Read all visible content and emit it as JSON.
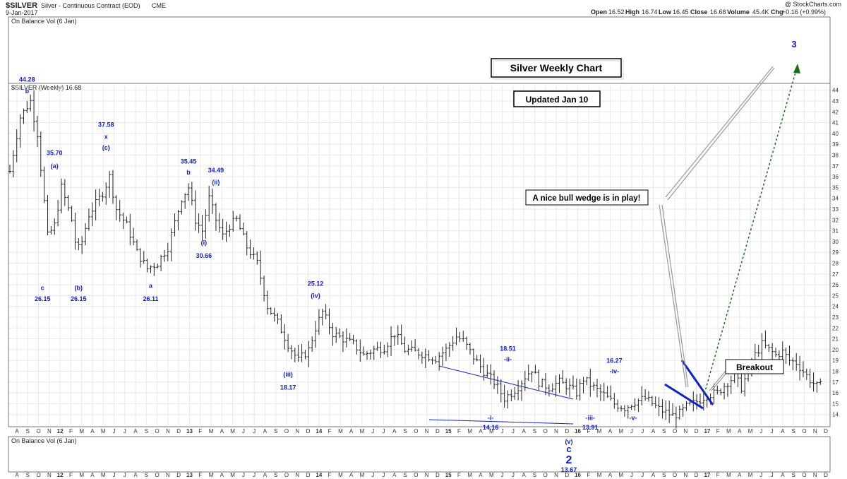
{
  "header": {
    "symbol": "$SILVER",
    "description": "Silver - Continuous Contract (EOD)",
    "exchange": "CME",
    "date": "9-Jan-2017",
    "watermark": "@ StockCharts.com",
    "quote": {
      "open_label": "Open",
      "open": "16.52",
      "high_label": "High",
      "high": "16.74",
      "low_label": "Low",
      "low": "16.45",
      "close_label": "Close",
      "close": "16.68",
      "volume_label": "Volume",
      "volume": "45.4K",
      "chg_label": "Chg",
      "chg": "+0.16 (+0.99%)"
    }
  },
  "panels": {
    "obv_top_label": "On Balance Vol (6 Jan)",
    "price_label": "$SILVER (Weekly) 16.68",
    "obv_bottom_label": "On Balance Vol (6 Jan)"
  },
  "boxes": {
    "title": "Silver Weekly Chart",
    "updated": "Updated Jan 10",
    "wedge": "A nice bull wedge is in play!",
    "breakout": "Breakout"
  },
  "colors": {
    "price_bars": "#222222",
    "annotation": "#1020d0",
    "trendline": "#1020d0",
    "projection": "#1a6b1a"
  },
  "chart_data": {
    "type": "ohlc",
    "title": "Silver Weekly Chart",
    "ylim": [
      13,
      44.5
    ],
    "y_ticks": [
      14,
      15,
      16,
      17,
      18,
      19,
      20,
      21,
      22,
      23,
      24,
      25,
      26,
      27,
      28,
      29,
      30,
      31,
      32,
      33,
      34,
      35,
      36,
      37,
      38,
      39,
      40,
      41,
      42,
      43,
      44
    ],
    "x_ticks": [
      "A",
      "S",
      "O",
      "N",
      "12",
      "F",
      "M",
      "A",
      "M",
      "J",
      "J",
      "A",
      "S",
      "O",
      "N",
      "D",
      "13",
      "F",
      "M",
      "A",
      "M",
      "J",
      "J",
      "A",
      "S",
      "O",
      "N",
      "D",
      "14",
      "F",
      "M",
      "A",
      "M",
      "J",
      "J",
      "A",
      "S",
      "O",
      "N",
      "D",
      "15",
      "F",
      "M",
      "A",
      "M",
      "J",
      "J",
      "A",
      "S",
      "O",
      "N",
      "D",
      "16",
      "F",
      "M",
      "A",
      "M",
      "J",
      "J",
      "A",
      "S",
      "O",
      "N",
      "D",
      "17",
      "F",
      "M",
      "A",
      "M",
      "J",
      "J",
      "A",
      "S",
      "O",
      "N",
      "D"
    ],
    "bold_ticks": [
      "12",
      "13",
      "14",
      "15",
      "16",
      "17"
    ],
    "path": [
      {
        "t": 0,
        "v": 36.5
      },
      {
        "t": 3,
        "v": 41.5
      },
      {
        "t": 6,
        "v": 43.0
      },
      {
        "t": 8,
        "v": 40.0
      },
      {
        "t": 11,
        "v": 30.5
      },
      {
        "t": 13,
        "v": 31.5
      },
      {
        "t": 15,
        "v": 35.0
      },
      {
        "t": 18,
        "v": 32.0
      },
      {
        "t": 19.5,
        "v": 29.0
      },
      {
        "t": 21,
        "v": 30.0
      },
      {
        "t": 23,
        "v": 32.5
      },
      {
        "t": 27,
        "v": 34.5
      },
      {
        "t": 29,
        "v": 36.0
      },
      {
        "t": 31,
        "v": 33.0
      },
      {
        "t": 34,
        "v": 31.5
      },
      {
        "t": 37,
        "v": 29.0
      },
      {
        "t": 40,
        "v": 27.5
      },
      {
        "t": 43,
        "v": 28.0
      },
      {
        "t": 46,
        "v": 29.5
      },
      {
        "t": 50,
        "v": 34.0
      },
      {
        "t": 52,
        "v": 35.0
      },
      {
        "t": 54,
        "v": 32.0
      },
      {
        "t": 56,
        "v": 31.0
      },
      {
        "t": 58,
        "v": 34.0
      },
      {
        "t": 60,
        "v": 32.0
      },
      {
        "t": 62,
        "v": 30.5
      },
      {
        "t": 64,
        "v": 31.5
      },
      {
        "t": 66,
        "v": 32.0
      },
      {
        "t": 69,
        "v": 29.5
      },
      {
        "t": 72,
        "v": 28.0
      },
      {
        "t": 75,
        "v": 24.0
      },
      {
        "t": 78,
        "v": 22.5
      },
      {
        "t": 81,
        "v": 20.5
      },
      {
        "t": 84,
        "v": 19.0
      },
      {
        "t": 87,
        "v": 20.0
      },
      {
        "t": 89,
        "v": 22.0
      },
      {
        "t": 91,
        "v": 23.5
      },
      {
        "t": 94,
        "v": 21.5
      },
      {
        "t": 97,
        "v": 21.0
      },
      {
        "t": 100,
        "v": 20.5
      },
      {
        "t": 103,
        "v": 19.5
      },
      {
        "t": 106,
        "v": 20.0
      },
      {
        "t": 109,
        "v": 20.2
      },
      {
        "t": 112,
        "v": 21.5
      },
      {
        "t": 115,
        "v": 20.0
      },
      {
        "t": 118,
        "v": 19.8
      },
      {
        "t": 121,
        "v": 19.5
      },
      {
        "t": 124,
        "v": 19.2
      },
      {
        "t": 127,
        "v": 20.0
      },
      {
        "t": 130,
        "v": 21.2
      },
      {
        "t": 132,
        "v": 20.8
      },
      {
        "t": 135,
        "v": 19.3
      },
      {
        "t": 138,
        "v": 18.0
      },
      {
        "t": 141,
        "v": 17.0
      },
      {
        "t": 144,
        "v": 15.5
      },
      {
        "t": 146,
        "v": 16.0
      },
      {
        "t": 148,
        "v": 16.6
      },
      {
        "t": 150,
        "v": 17.5
      },
      {
        "t": 152,
        "v": 18.2
      },
      {
        "t": 154,
        "v": 17.0
      },
      {
        "t": 157,
        "v": 16.5
      },
      {
        "t": 160,
        "v": 17.0
      },
      {
        "t": 163,
        "v": 16.5
      },
      {
        "t": 165,
        "v": 16.0
      },
      {
        "t": 167,
        "v": 17.3
      },
      {
        "t": 170,
        "v": 16.5
      },
      {
        "t": 173,
        "v": 15.8
      },
      {
        "t": 176,
        "v": 15.0
      },
      {
        "t": 179,
        "v": 14.6
      },
      {
        "t": 182,
        "v": 15.2
      },
      {
        "t": 185,
        "v": 15.5
      },
      {
        "t": 187,
        "v": 15.0
      },
      {
        "t": 189,
        "v": 14.5
      },
      {
        "t": 191,
        "v": 14.2
      },
      {
        "t": 193,
        "v": 13.9
      },
      {
        "t": 195,
        "v": 14.1
      },
      {
        "t": 197,
        "v": 14.7
      },
      {
        "t": 200,
        "v": 15.2
      },
      {
        "t": 203,
        "v": 15.8
      },
      {
        "t": 206,
        "v": 16.0
      },
      {
        "t": 209,
        "v": 17.0
      },
      {
        "t": 211,
        "v": 17.5
      },
      {
        "t": 213,
        "v": 16.5
      },
      {
        "t": 215,
        "v": 18.0
      },
      {
        "t": 217,
        "v": 19.5
      },
      {
        "t": 219,
        "v": 20.5
      },
      {
        "t": 221,
        "v": 20.0
      },
      {
        "t": 223,
        "v": 19.5
      },
      {
        "t": 225,
        "v": 19.8
      },
      {
        "t": 227,
        "v": 19.0
      },
      {
        "t": 229,
        "v": 18.8
      },
      {
        "t": 231,
        "v": 18.0
      },
      {
        "t": 233,
        "v": 17.2
      },
      {
        "t": 235,
        "v": 16.6
      },
      {
        "t": 236,
        "v": 16.7
      }
    ],
    "annotations": [
      {
        "text": "44.28",
        "t": 5,
        "v": 44.8
      },
      {
        "text": "b",
        "t": 5,
        "v": 43.7
      },
      {
        "text": "c",
        "t": 9.5,
        "v": 25.5
      },
      {
        "text": "26.15",
        "t": 9.5,
        "v": 24.5
      },
      {
        "text": "35.70",
        "t": 13,
        "v": 38.0
      },
      {
        "text": "(a)",
        "t": 13,
        "v": 36.8
      },
      {
        "text": "(b)",
        "t": 20,
        "v": 25.5
      },
      {
        "text": "26.15",
        "t": 20,
        "v": 24.5
      },
      {
        "text": "37.58",
        "t": 28,
        "v": 40.6
      },
      {
        "text": "x",
        "t": 28,
        "v": 39.5
      },
      {
        "text": "(c)",
        "t": 28,
        "v": 38.5
      },
      {
        "text": "a",
        "t": 41,
        "v": 25.7
      },
      {
        "text": "26.11",
        "t": 41,
        "v": 24.5
      },
      {
        "text": "35.45",
        "t": 52,
        "v": 37.2
      },
      {
        "text": "b",
        "t": 52,
        "v": 36.2
      },
      {
        "text": "34.49",
        "t": 60,
        "v": 36.4
      },
      {
        "text": "(ii)",
        "t": 60,
        "v": 35.3
      },
      {
        "text": "(i)",
        "t": 56.5,
        "v": 29.7
      },
      {
        "text": "30.66",
        "t": 56.5,
        "v": 28.5
      },
      {
        "text": "25.12",
        "t": 89,
        "v": 25.9
      },
      {
        "text": "(iv)",
        "t": 89,
        "v": 24.8
      },
      {
        "text": "(iii)",
        "t": 81,
        "v": 17.5
      },
      {
        "text": "18.17",
        "t": 81,
        "v": 16.3
      },
      {
        "text": "18.51",
        "t": 145,
        "v": 19.9
      },
      {
        "text": "-ii-",
        "t": 145,
        "v": 18.9
      },
      {
        "text": "16.27",
        "t": 176,
        "v": 18.8
      },
      {
        "text": "-iv-",
        "t": 176,
        "v": 17.8
      },
      {
        "text": "-i-",
        "t": 140,
        "v": 13.5
      },
      {
        "text": "14.16",
        "t": 140,
        "v": 12.6
      },
      {
        "text": "-iii-",
        "t": 169,
        "v": 13.5
      },
      {
        "text": "13.91",
        "t": 169,
        "v": 12.6
      },
      {
        "text": "-v-",
        "t": 181.5,
        "v": 13.5
      }
    ],
    "lower_annotations": [
      {
        "text": "(v)",
        "size": "small"
      },
      {
        "text": "c",
        "size": "big"
      },
      {
        "text": "2",
        "size": "huge"
      },
      {
        "text": "13.67",
        "size": "small"
      }
    ],
    "wave_target": "3"
  }
}
